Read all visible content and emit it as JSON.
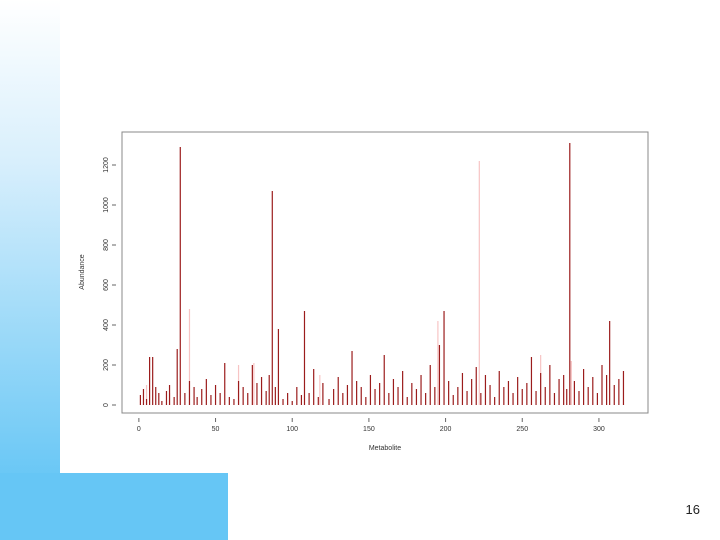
{
  "chart_data": {
    "type": "spike",
    "xlabel": "Metabolite",
    "ylabel": "Abundance",
    "xlim": [
      -11,
      332
    ],
    "ylim": [
      -40,
      1365
    ],
    "xticks": [
      0,
      50,
      100,
      150,
      200,
      250,
      300
    ],
    "yticks": [
      0,
      200,
      400,
      600,
      800,
      1000,
      1200
    ],
    "series": [
      {
        "color": "#9b1c1c",
        "x": [
          1,
          3,
          5,
          7,
          9,
          11,
          13,
          15,
          18,
          20,
          23,
          25,
          27,
          30,
          33,
          36,
          38,
          41,
          44,
          47,
          50,
          53,
          56,
          59,
          62,
          65,
          68,
          71,
          74,
          77,
          80,
          83,
          85,
          87,
          89,
          91,
          94,
          97,
          100,
          103,
          106,
          108,
          111,
          114,
          117,
          120,
          124,
          127,
          130,
          133,
          136,
          139,
          142,
          145,
          148,
          151,
          154,
          157,
          160,
          163,
          166,
          169,
          172,
          175,
          178,
          181,
          184,
          187,
          190,
          193,
          196,
          199,
          202,
          205,
          208,
          211,
          214,
          217,
          220,
          223,
          226,
          229,
          232,
          235,
          238,
          241,
          244,
          247,
          250,
          253,
          256,
          259,
          262,
          265,
          268,
          271,
          274,
          277,
          279,
          281,
          284,
          287,
          290,
          293,
          296,
          299,
          302,
          305,
          307,
          310,
          313,
          316
        ],
        "values": [
          50,
          80,
          30,
          240,
          240,
          90,
          60,
          20,
          70,
          100,
          40,
          280,
          1290,
          60,
          120,
          90,
          40,
          80,
          130,
          50,
          100,
          60,
          210,
          40,
          30,
          120,
          90,
          60,
          200,
          110,
          140,
          70,
          150,
          1070,
          90,
          380,
          30,
          60,
          20,
          90,
          50,
          470,
          60,
          180,
          40,
          110,
          30,
          80,
          140,
          60,
          100,
          270,
          120,
          90,
          40,
          150,
          80,
          110,
          250,
          60,
          130,
          90,
          170,
          40,
          110,
          80,
          150,
          60,
          200,
          90,
          300,
          470,
          120,
          50,
          90,
          160,
          70,
          130,
          190,
          60,
          150,
          100,
          40,
          170,
          90,
          120,
          60,
          140,
          80,
          110,
          240,
          70,
          160,
          90,
          200,
          60,
          130,
          150,
          80,
          1310,
          120,
          70,
          180,
          90,
          140,
          60,
          200,
          150,
          420,
          100,
          130,
          170
        ]
      },
      {
        "color": "#f7c4c4",
        "x": [
          5,
          20,
          33,
          65,
          75,
          118,
          195,
          222,
          262,
          282
        ],
        "values": [
          100,
          60,
          480,
          200,
          210,
          150,
          420,
          1220,
          250,
          220
        ]
      }
    ]
  },
  "slide_number": "16"
}
